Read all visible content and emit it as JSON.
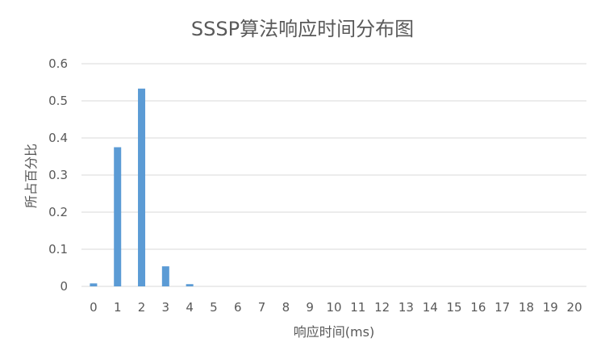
{
  "chart_data": {
    "type": "bar",
    "title": "SSSP算法响应时间分布图",
    "xlabel": "响应时间(ms)",
    "ylabel": "所占百分比",
    "categories": [
      "0",
      "1",
      "2",
      "3",
      "4",
      "5",
      "6",
      "7",
      "8",
      "9",
      "10",
      "11",
      "12",
      "13",
      "14",
      "15",
      "16",
      "17",
      "18",
      "19",
      "20"
    ],
    "values": [
      0.008,
      0.375,
      0.533,
      0.054,
      0.006,
      0,
      0,
      0,
      0,
      0,
      0,
      0,
      0,
      0,
      0,
      0,
      0,
      0,
      0,
      0,
      0
    ],
    "ylim": [
      0,
      0.6
    ],
    "yticks": [
      "0",
      "0.1",
      "0.2",
      "0.3",
      "0.4",
      "0.5",
      "0.6"
    ],
    "ytick_values": [
      0,
      0.1,
      0.2,
      0.3,
      0.4,
      0.5,
      0.6
    ],
    "grid": true,
    "legend": "none",
    "bar_color": "#5b9bd5"
  }
}
